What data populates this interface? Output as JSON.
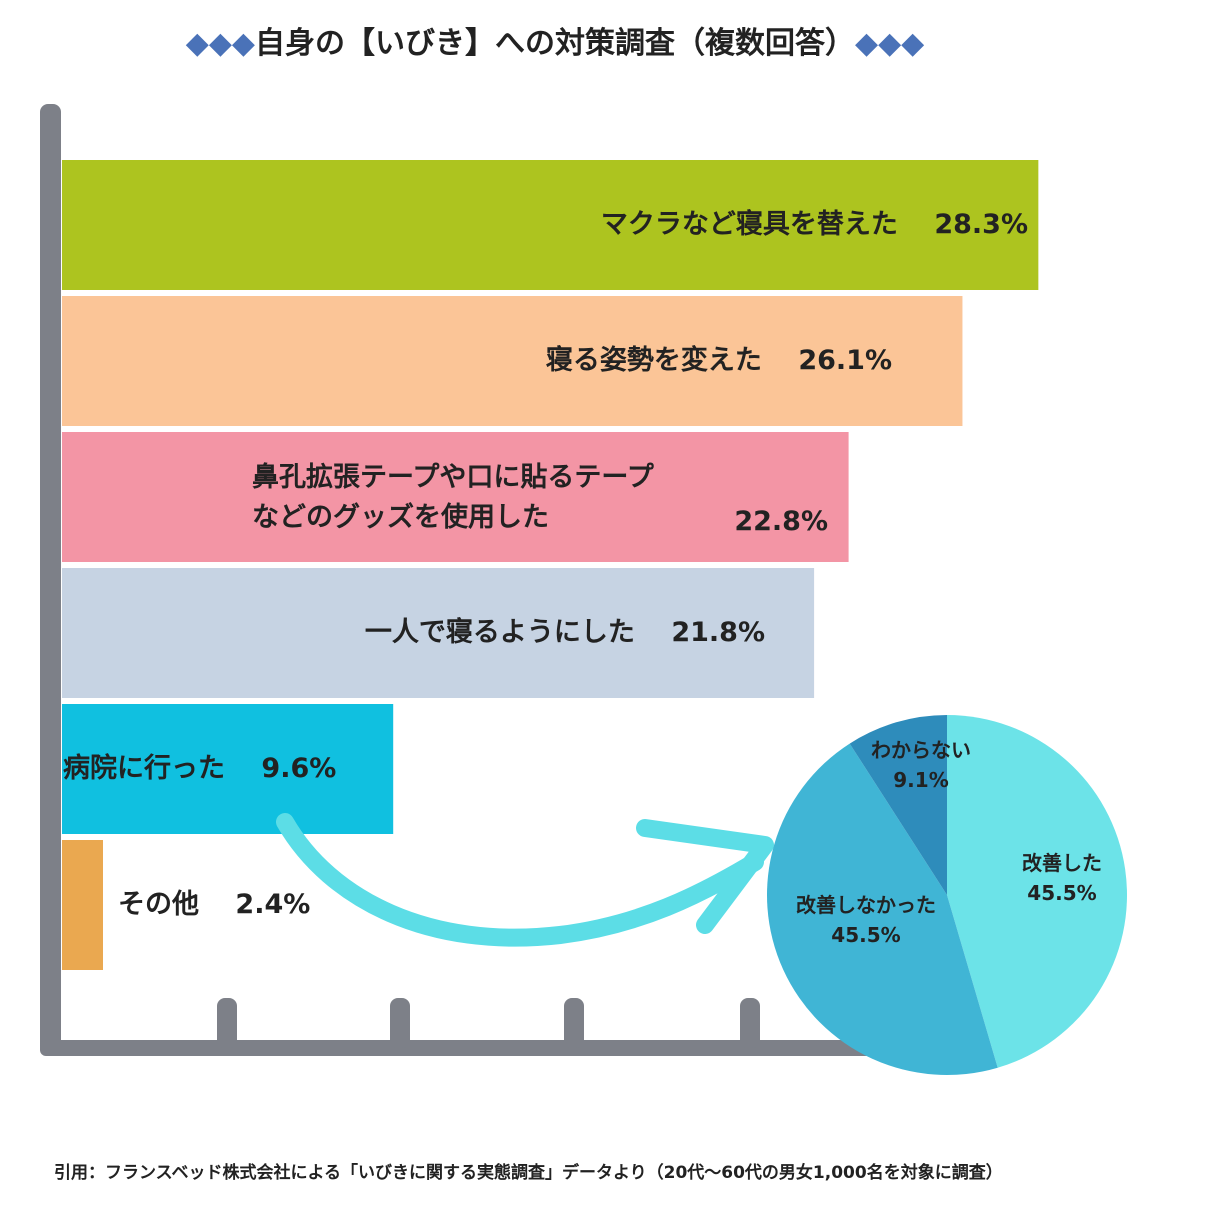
{
  "title": {
    "decoration": "◆◆◆",
    "text": "自身の【いびき】への対策調査（複数回答）"
  },
  "footer": "引用：フランスベッド株式会社による「いびきに関する実態調査」データより（20代〜60代の男女1,000名を対象に調査）",
  "chart_data": [
    {
      "type": "bar",
      "orientation": "horizontal",
      "categories": [
        "マクラなど寝具を替えた",
        "寝る姿勢を変えた",
        "鼻孔拡張テープや口に貼るテープ\nなどのグッズを使用した",
        "一人で寝るようにした",
        "病院に行った",
        "その他"
      ],
      "values": [
        28.3,
        26.1,
        22.8,
        21.8,
        9.6,
        2.4
      ],
      "value_labels": [
        "28.3%",
        "26.1%",
        "22.8%",
        "21.8%",
        "9.6%",
        "2.4%"
      ],
      "colors": [
        "#adc41f",
        "#fbc597",
        "#f395a5",
        "#c6d3e3",
        "#10c0e0",
        "#eaa850"
      ],
      "grid": false
    },
    {
      "type": "pie",
      "labels": [
        "改善した",
        "改善しなかった",
        "わからない"
      ],
      "values": [
        45.5,
        45.5,
        9.1
      ],
      "value_labels": [
        "45.5%",
        "45.5%",
        "9.1%"
      ],
      "colors": [
        "#6ce3e8",
        "#40b5d5",
        "#2e8cbb"
      ]
    }
  ],
  "arrow_color": "#5cdde6",
  "axis_color": "#7d8088"
}
